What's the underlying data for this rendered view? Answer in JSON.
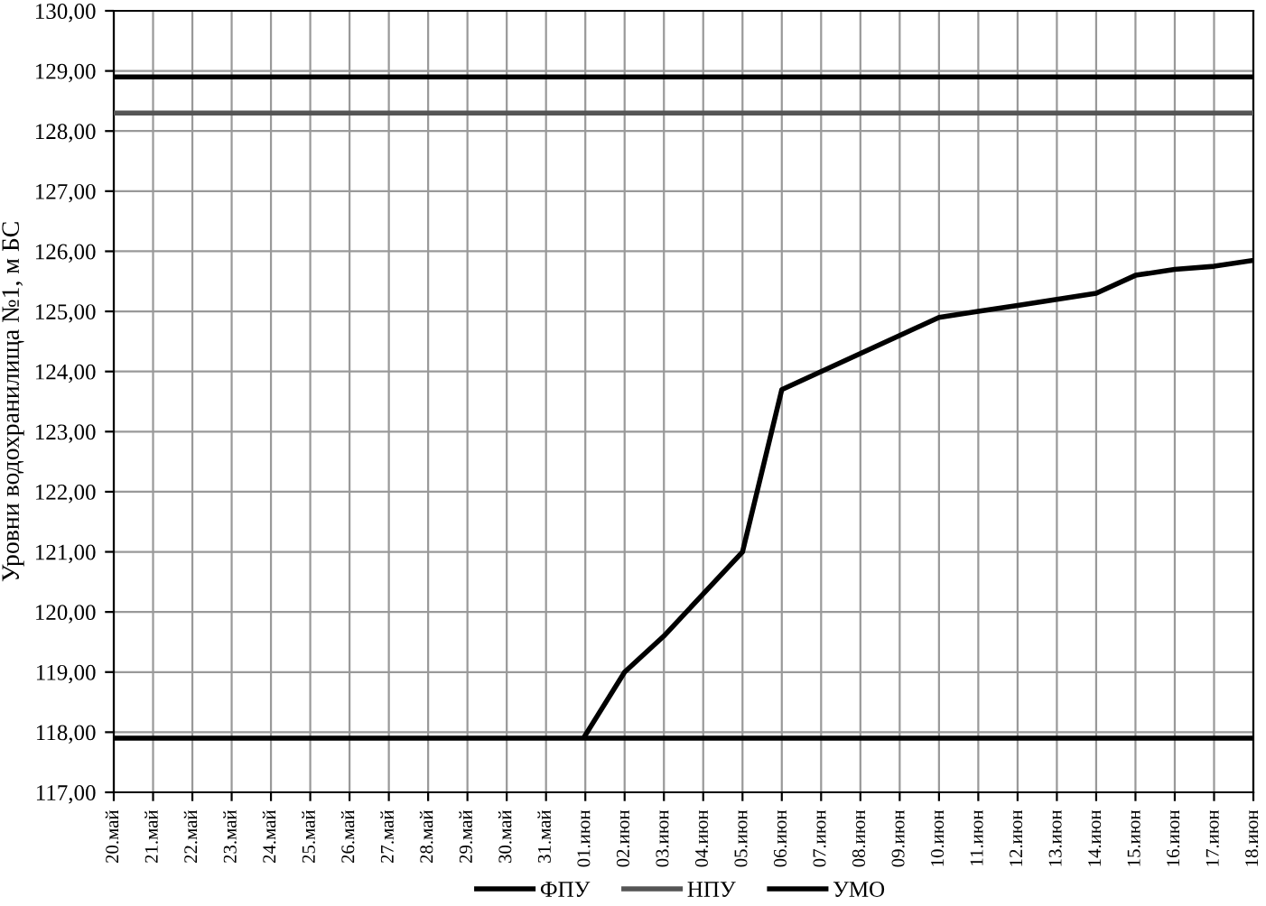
{
  "chart_data": {
    "type": "line",
    "ylabel": "Уровни водохранилища №1, м БС",
    "categories": [
      "20.май",
      "21.май",
      "22.май",
      "23.май",
      "24.май",
      "25.май",
      "26.май",
      "27.май",
      "28.май",
      "29.май",
      "30.май",
      "31.май",
      "01.июн",
      "02.июн",
      "03.июн",
      "04.июн",
      "05.июн",
      "06.июн",
      "07.июн",
      "08.июн",
      "09.июн",
      "10.июн",
      "11.июн",
      "12.июн",
      "13.июн",
      "14.июн",
      "15.июн",
      "16.июн",
      "17.июн",
      "18.июн"
    ],
    "series": [
      {
        "name": "ФПУ",
        "color": "#000000",
        "values": [
          128.9,
          128.9,
          128.9,
          128.9,
          128.9,
          128.9,
          128.9,
          128.9,
          128.9,
          128.9,
          128.9,
          128.9,
          128.9,
          128.9,
          128.9,
          128.9,
          128.9,
          128.9,
          128.9,
          128.9,
          128.9,
          128.9,
          128.9,
          128.9,
          128.9,
          128.9,
          128.9,
          128.9,
          128.9,
          128.9
        ]
      },
      {
        "name": "НПУ",
        "color": "#555555",
        "values": [
          128.3,
          128.3,
          128.3,
          128.3,
          128.3,
          128.3,
          128.3,
          128.3,
          128.3,
          128.3,
          128.3,
          128.3,
          128.3,
          128.3,
          128.3,
          128.3,
          128.3,
          128.3,
          128.3,
          128.3,
          128.3,
          128.3,
          128.3,
          128.3,
          128.3,
          128.3,
          128.3,
          128.3,
          128.3,
          128.3
        ]
      },
      {
        "name": "УМО",
        "color": "#000000",
        "values": [
          117.9,
          117.9,
          117.9,
          117.9,
          117.9,
          117.9,
          117.9,
          117.9,
          117.9,
          117.9,
          117.9,
          117.9,
          117.9,
          117.9,
          117.9,
          117.9,
          117.9,
          117.9,
          117.9,
          117.9,
          117.9,
          117.9,
          117.9,
          117.9,
          117.9,
          117.9,
          117.9,
          117.9,
          117.9,
          117.9
        ]
      },
      {
        "color": "#000000",
        "values": [
          null,
          null,
          null,
          null,
          null,
          null,
          null,
          null,
          null,
          null,
          null,
          null,
          117.95,
          119.0,
          119.6,
          120.3,
          121.0,
          123.7,
          124.0,
          124.3,
          124.6,
          124.9,
          125.0,
          125.1,
          125.2,
          125.3,
          125.6,
          125.7,
          125.75,
          125.85
        ]
      }
    ],
    "ylim": [
      117,
      130
    ],
    "yticks": [
      {
        "value": 117,
        "label": "117,00"
      },
      {
        "value": 118,
        "label": "118,00"
      },
      {
        "value": 119,
        "label": "119,00"
      },
      {
        "value": 120,
        "label": "120,00"
      },
      {
        "value": 121,
        "label": "121,00"
      },
      {
        "value": 122,
        "label": "122,00"
      },
      {
        "value": 123,
        "label": "123,00"
      },
      {
        "value": 124,
        "label": "124,00"
      },
      {
        "value": 125,
        "label": "125,00"
      },
      {
        "value": 126,
        "label": "126,00"
      },
      {
        "value": 127,
        "label": "127,00"
      },
      {
        "value": 128,
        "label": "128,00"
      },
      {
        "value": 129,
        "label": "129,00"
      },
      {
        "value": 130,
        "label": "130,00"
      }
    ],
    "grid": true,
    "legend": "bottom",
    "marker": "none",
    "line_style": "solid"
  }
}
